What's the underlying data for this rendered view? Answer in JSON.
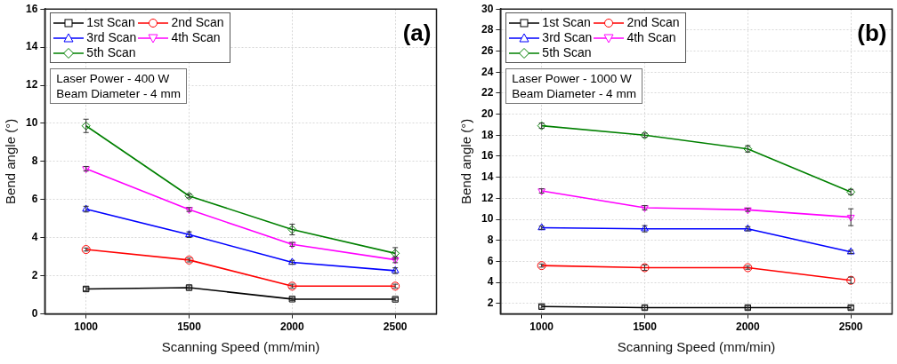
{
  "chart_data": [
    {
      "type": "line",
      "title": "(a)",
      "xlabel": "Scanning Speed (mm/min)",
      "ylabel": "Bend angle (°)",
      "x": [
        1000,
        1500,
        2000,
        2500
      ],
      "xlim": [
        800,
        2700
      ],
      "xticks": [
        1000,
        1500,
        2000,
        2500
      ],
      "ylim": [
        0,
        16
      ],
      "yticks": [
        0,
        2,
        4,
        6,
        8,
        10,
        12,
        14,
        16
      ],
      "grid": true,
      "legend": "top left",
      "annotations": [
        "Laser Power - 400 W",
        "Beam Diameter - 4 mm"
      ],
      "series": [
        {
          "name": "1st Scan",
          "color": "#000000",
          "marker": "square",
          "values": [
            1.31,
            1.38,
            0.78,
            0.77
          ],
          "errors": [
            0.1,
            0.1,
            0.08,
            0.08
          ]
        },
        {
          "name": "2nd Scan",
          "color": "#ff0000",
          "marker": "circle",
          "values": [
            3.38,
            2.83,
            1.46,
            1.46
          ],
          "errors": [
            0.08,
            0.1,
            0.1,
            0.1
          ]
        },
        {
          "name": "3rd Scan",
          "color": "#0000ff",
          "marker": "triangle",
          "values": [
            5.5,
            4.16,
            2.71,
            2.27
          ],
          "errors": [
            0.15,
            0.15,
            0.1,
            0.15
          ]
        },
        {
          "name": "4th Scan",
          "color": "#ff00ff",
          "marker": "triangle-down",
          "values": [
            7.62,
            5.48,
            3.65,
            2.84
          ],
          "errors": [
            0.12,
            0.1,
            0.1,
            0.15
          ]
        },
        {
          "name": "5th Scan",
          "color": "#008000",
          "marker": "diamond",
          "values": [
            9.87,
            6.19,
            4.43,
            3.18
          ],
          "errors": [
            0.35,
            0.1,
            0.28,
            0.3
          ]
        }
      ]
    },
    {
      "type": "line",
      "title": "(b)",
      "xlabel": "Scanning Speed (mm/min)",
      "ylabel": "Bend angle (°)",
      "x": [
        1000,
        1500,
        2000,
        2500
      ],
      "xlim": [
        800,
        2700
      ],
      "xticks": [
        1000,
        1500,
        2000,
        2500
      ],
      "ylim": [
        1,
        30
      ],
      "yticks": [
        2,
        4,
        6,
        8,
        10,
        12,
        14,
        16,
        18,
        20,
        22,
        24,
        26,
        28,
        30
      ],
      "grid": true,
      "legend": "top left",
      "annotations": [
        "Laser Power - 1000 W",
        "Beam Diameter - 4 mm"
      ],
      "series": [
        {
          "name": "1st Scan",
          "color": "#000000",
          "marker": "square",
          "values": [
            1.7,
            1.6,
            1.6,
            1.6
          ],
          "errors": [
            0.15,
            0.2,
            0.15,
            0.15
          ]
        },
        {
          "name": "2nd Scan",
          "color": "#ff0000",
          "marker": "circle",
          "values": [
            5.6,
            5.4,
            5.4,
            4.2
          ],
          "errors": [
            0.15,
            0.25,
            0.15,
            0.3
          ]
        },
        {
          "name": "3rd Scan",
          "color": "#0000ff",
          "marker": "triangle",
          "values": [
            9.2,
            9.1,
            9.1,
            6.9
          ],
          "errors": [
            0.15,
            0.3,
            0.2,
            0.15
          ]
        },
        {
          "name": "4th Scan",
          "color": "#ff00ff",
          "marker": "triangle-down",
          "values": [
            12.7,
            11.1,
            10.9,
            10.2
          ],
          "errors": [
            0.2,
            0.2,
            0.15,
            0.8
          ]
        },
        {
          "name": "5th Scan",
          "color": "#008000",
          "marker": "diamond",
          "values": [
            18.9,
            18.0,
            16.7,
            12.6
          ],
          "errors": [
            0.25,
            0.2,
            0.3,
            0.25
          ]
        }
      ]
    }
  ]
}
